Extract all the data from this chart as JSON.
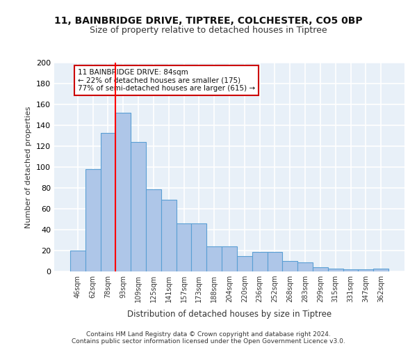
{
  "title1": "11, BAINBRIDGE DRIVE, TIPTREE, COLCHESTER, CO5 0BP",
  "title2": "Size of property relative to detached houses in Tiptree",
  "xlabel": "Distribution of detached houses by size in Tiptree",
  "ylabel": "Number of detached properties",
  "bar_labels": [
    "46sqm",
    "62sqm",
    "78sqm",
    "93sqm",
    "109sqm",
    "125sqm",
    "141sqm",
    "157sqm",
    "173sqm",
    "188sqm",
    "204sqm",
    "220sqm",
    "236sqm",
    "252sqm",
    "268sqm",
    "283sqm",
    "299sqm",
    "315sqm",
    "331sqm",
    "347sqm",
    "362sqm"
  ],
  "bar_values": [
    20,
    98,
    133,
    152,
    124,
    79,
    69,
    46,
    46,
    24,
    24,
    15,
    19,
    19,
    10,
    9,
    4,
    3,
    2,
    2,
    3
  ],
  "bar_color": "#aec6e8",
  "bar_edge_color": "#5a9fd4",
  "bg_color": "#e8f0f8",
  "grid_color": "#ffffff",
  "red_line_x": 2.5,
  "annotation_line1": "11 BAINBRIDGE DRIVE: 84sqm",
  "annotation_line2": "← 22% of detached houses are smaller (175)",
  "annotation_line3": "77% of semi-detached houses are larger (615) →",
  "annotation_box_color": "#ffffff",
  "annotation_box_edge": "#cc0000",
  "footer": "Contains HM Land Registry data © Crown copyright and database right 2024.\nContains public sector information licensed under the Open Government Licence v3.0.",
  "ylim": [
    0,
    200
  ],
  "yticks": [
    0,
    20,
    40,
    60,
    80,
    100,
    120,
    140,
    160,
    180,
    200
  ]
}
